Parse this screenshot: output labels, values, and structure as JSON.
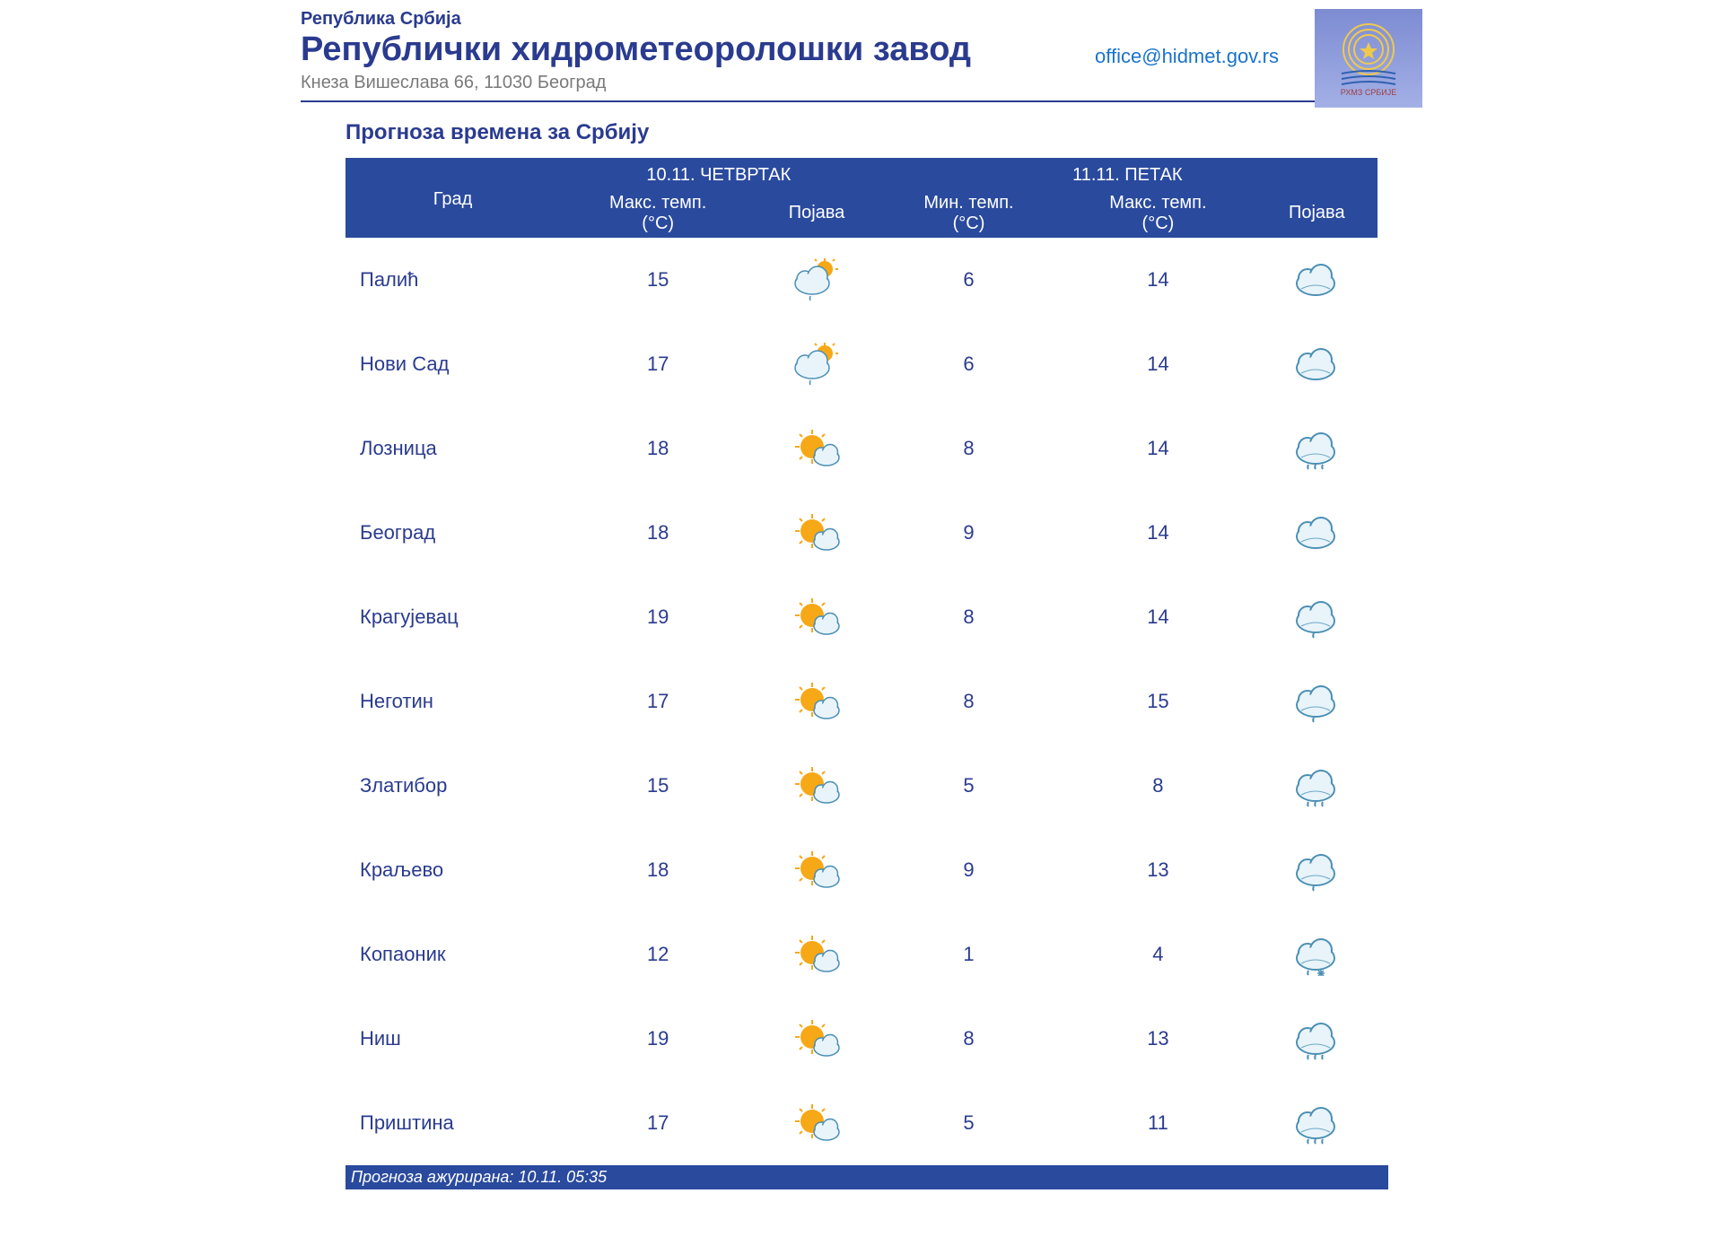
{
  "header": {
    "country": "Република Србија",
    "institute": "Републички хидрометеоролошки завод",
    "address": "Кнеза Вишеслава 66, 11030 Београд",
    "email": "office@hidmet.gov.rs",
    "logo_caption": "РХМЗ СРБИЈЕ"
  },
  "section_title": "Прогноза времена за Србију",
  "colors": {
    "header_bg": "#2a4a9e",
    "text_blue": "#2a3b8f",
    "link_blue": "#1a73cc",
    "address_gray": "#7a7a7a",
    "sun": "#f7a817",
    "cloud_fill": "#e8f4fa",
    "cloud_stroke": "#4a8fb5",
    "cloud_dark": "#6fa8c4"
  },
  "table": {
    "col_city": "Град",
    "day1": {
      "date_label": "10.11. ЧЕТВРТАК",
      "max_label": "Макс. темп.\n(°C)",
      "cond_label": "Појава"
    },
    "day2": {
      "date_label": "11.11. ПЕТАК",
      "min_label": "Мин. темп.\n(°C)",
      "max_label": "Макс. темп.\n(°C)",
      "cond_label": "Појава"
    },
    "rows": [
      {
        "city": "Палић",
        "d1_max": 15,
        "d1_icon": "cloud-sun",
        "d2_min": 6,
        "d2_max": 14,
        "d2_icon": "cloud"
      },
      {
        "city": "Нови Сад",
        "d1_max": 17,
        "d1_icon": "cloud-sun",
        "d2_min": 6,
        "d2_max": 14,
        "d2_icon": "cloud"
      },
      {
        "city": "Лозница",
        "d1_max": 18,
        "d1_icon": "sun-cloud",
        "d2_min": 8,
        "d2_max": 14,
        "d2_icon": "cloud-rain"
      },
      {
        "city": "Београд",
        "d1_max": 18,
        "d1_icon": "sun-cloud",
        "d2_min": 9,
        "d2_max": 14,
        "d2_icon": "cloud"
      },
      {
        "city": "Крагујевац",
        "d1_max": 19,
        "d1_icon": "sun-cloud",
        "d2_min": 8,
        "d2_max": 14,
        "d2_icon": "cloud-drizzle"
      },
      {
        "city": "Неготин",
        "d1_max": 17,
        "d1_icon": "sun-cloud",
        "d2_min": 8,
        "d2_max": 15,
        "d2_icon": "cloud-drizzle"
      },
      {
        "city": "Златибор",
        "d1_max": 15,
        "d1_icon": "sun-cloud",
        "d2_min": 5,
        "d2_max": 8,
        "d2_icon": "cloud-rain"
      },
      {
        "city": "Краљево",
        "d1_max": 18,
        "d1_icon": "sun-cloud",
        "d2_min": 9,
        "d2_max": 13,
        "d2_icon": "cloud-drizzle"
      },
      {
        "city": "Копаоник",
        "d1_max": 12,
        "d1_icon": "sun-cloud",
        "d2_min": 1,
        "d2_max": 4,
        "d2_icon": "cloud-snow"
      },
      {
        "city": "Ниш",
        "d1_max": 19,
        "d1_icon": "sun-cloud",
        "d2_min": 8,
        "d2_max": 13,
        "d2_icon": "cloud-rain"
      },
      {
        "city": "Приштина",
        "d1_max": 17,
        "d1_icon": "sun-cloud",
        "d2_min": 5,
        "d2_max": 11,
        "d2_icon": "cloud-rain"
      }
    ]
  },
  "footer": "Прогноза ажурирана:  10.11. 05:35"
}
